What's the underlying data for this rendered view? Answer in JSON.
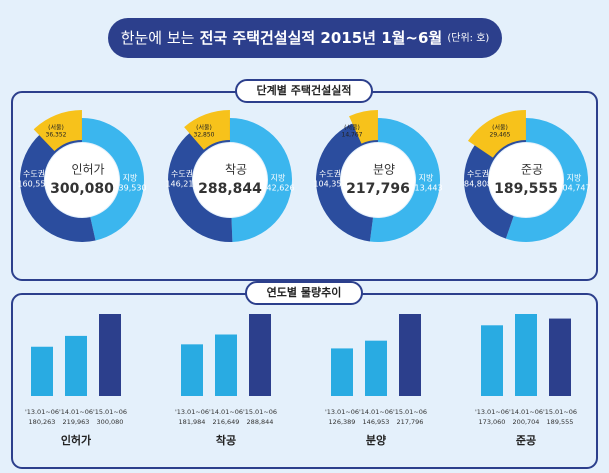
{
  "header": {
    "title_light": "한눈에 보는",
    "title_bold": "전국 주택건설실적 2015년 1월~6월",
    "unit": "(단위: 호)"
  },
  "sections": [
    "단계별 주택건설실적",
    "연도별 물량추이"
  ],
  "chart_data": [
    {
      "type": "pie",
      "center_label": "인허가",
      "total": 300080,
      "total_label": "300,080",
      "categories": [
        "수도권",
        "지방",
        "(서울)"
      ],
      "values": [
        160550,
        139530,
        36352
      ],
      "value_labels": [
        "160,550",
        "139,530",
        "36,352"
      ],
      "colors": [
        "#2b4d9e",
        "#3bb6ee",
        "#f7c21b"
      ]
    },
    {
      "type": "pie",
      "center_label": "착공",
      "total": 288844,
      "total_label": "288,844",
      "categories": [
        "수도권",
        "지방",
        "(서울)"
      ],
      "values": [
        146218,
        142626,
        32850
      ],
      "value_labels": [
        "146,218",
        "142,626",
        "32,850"
      ],
      "colors": [
        "#2b4d9e",
        "#3bb6ee",
        "#f7c21b"
      ]
    },
    {
      "type": "pie",
      "center_label": "분양",
      "total": 217796,
      "total_label": "217,796",
      "categories": [
        "수도권",
        "지방",
        "(서울)"
      ],
      "values": [
        104353,
        113443,
        14767
      ],
      "value_labels": [
        "104,353",
        "113,443",
        "14,767"
      ],
      "colors": [
        "#2b4d9e",
        "#3bb6ee",
        "#f7c21b"
      ]
    },
    {
      "type": "pie",
      "center_label": "준공",
      "total": 189555,
      "total_label": "189,555",
      "categories": [
        "수도권",
        "지방",
        "(서울)"
      ],
      "values": [
        84808,
        104747,
        29465
      ],
      "value_labels": [
        "84,808",
        "104,747",
        "29,465"
      ],
      "colors": [
        "#2b4d9e",
        "#3bb6ee",
        "#f7c21b"
      ]
    },
    {
      "type": "bar",
      "title": "인허가",
      "categories": [
        "'13.01~06",
        "'14.01~06",
        "'15.01~06"
      ],
      "values": [
        180263,
        219963,
        300080
      ],
      "value_labels": [
        "180,263",
        "219,963",
        "300,080"
      ],
      "colors": [
        "#29abe2",
        "#29abe2",
        "#2c3f8c"
      ]
    },
    {
      "type": "bar",
      "title": "착공",
      "categories": [
        "'13.01~06",
        "'14.01~06",
        "'15.01~06"
      ],
      "values": [
        181984,
        216649,
        288844
      ],
      "value_labels": [
        "181,984",
        "216,649",
        "288,844"
      ],
      "colors": [
        "#29abe2",
        "#29abe2",
        "#2c3f8c"
      ]
    },
    {
      "type": "bar",
      "title": "분양",
      "categories": [
        "'13.01~06",
        "'14.01~06",
        "'15.01~06"
      ],
      "values": [
        126389,
        146953,
        217796
      ],
      "value_labels": [
        "126,389",
        "146,953",
        "217,796"
      ],
      "colors": [
        "#29abe2",
        "#29abe2",
        "#2c3f8c"
      ]
    },
    {
      "type": "bar",
      "title": "준공",
      "categories": [
        "'13.01~06",
        "'14.01~06",
        "'15.01~06"
      ],
      "values": [
        173060,
        200704,
        189555
      ],
      "value_labels": [
        "173,060",
        "200,704",
        "189,555"
      ],
      "colors": [
        "#29abe2",
        "#29abe2",
        "#2c3f8c"
      ]
    }
  ]
}
